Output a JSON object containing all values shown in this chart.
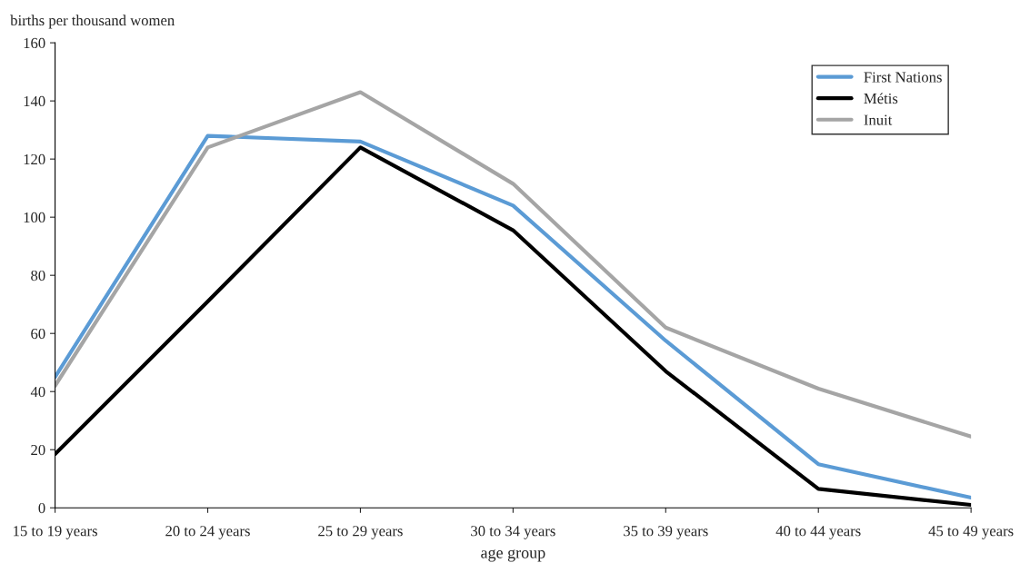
{
  "chart_data": {
    "type": "line",
    "ylabel": "births per thousand women",
    "xlabel": "age group",
    "categories": [
      "15 to 19 years",
      "20 to 24 years",
      "25 to 29 years",
      "30 to 34 years",
      "35 to 39 years",
      "40 to 44 years",
      "45 to 49 years"
    ],
    "series": [
      {
        "name": "First Nations",
        "color": "#5b9bd5",
        "values": [
          45,
          128,
          126,
          104,
          57.5,
          15,
          3.5
        ]
      },
      {
        "name": "Métis",
        "color": "#000000",
        "values": [
          18.5,
          71,
          124,
          95.5,
          47,
          6.5,
          1
        ]
      },
      {
        "name": "Inuit",
        "color": "#a5a5a5",
        "values": [
          42,
          124,
          143,
          111.5,
          62,
          41,
          24.5
        ]
      }
    ],
    "ylim": [
      0,
      160
    ],
    "yticks": [
      0,
      20,
      40,
      60,
      80,
      100,
      120,
      140,
      160
    ],
    "grid": false,
    "legend": "top right",
    "marker": "none",
    "line_style": "solid"
  }
}
